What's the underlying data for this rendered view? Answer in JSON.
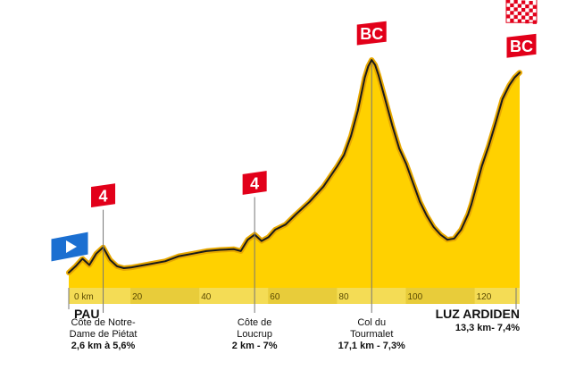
{
  "colors": {
    "fill": "#FFD100",
    "outline": "#1A1A1A",
    "halo": "#E7A800",
    "strip": "#F4DC55",
    "strip_alt": "#E8CC3A",
    "badge": "#E2001A",
    "start": "#1B6FD1",
    "leader": "#777777"
  },
  "chart_data": {
    "type": "area",
    "title": "",
    "xlabel": "",
    "ylabel": "",
    "xlim": [
      0,
      131
    ],
    "ylim": [
      300,
      2150
    ],
    "unit": "km",
    "x": [
      0,
      2,
      4,
      6,
      8,
      10,
      12,
      14,
      16,
      18,
      20,
      24,
      28,
      32,
      36,
      40,
      44,
      48,
      50,
      52,
      54,
      56,
      58,
      60,
      63,
      66,
      70,
      74,
      78,
      80,
      82,
      84,
      86,
      87,
      88,
      89,
      90,
      91,
      92,
      94,
      96,
      98,
      100,
      102,
      104,
      106,
      108,
      110,
      112,
      114,
      116,
      117,
      118,
      119,
      120,
      122,
      124,
      126,
      128,
      129.5,
      131
    ],
    "elevation": [
      420,
      470,
      530,
      480,
      570,
      620,
      520,
      470,
      455,
      460,
      470,
      490,
      510,
      550,
      570,
      590,
      600,
      605,
      590,
      680,
      720,
      670,
      700,
      760,
      800,
      880,
      980,
      1100,
      1260,
      1350,
      1500,
      1700,
      1960,
      2050,
      2100,
      2060,
      1980,
      1880,
      1780,
      1580,
      1400,
      1280,
      1130,
      980,
      870,
      780,
      720,
      680,
      690,
      760,
      880,
      960,
      1060,
      1160,
      1260,
      1420,
      1600,
      1790,
      1900,
      1960,
      2000
    ],
    "x_ticks": [
      {
        "value": 0,
        "label": "0 km"
      },
      {
        "value": 20,
        "label": "20"
      },
      {
        "value": 40,
        "label": "40"
      },
      {
        "value": 60,
        "label": "60"
      },
      {
        "value": 80,
        "label": "80"
      },
      {
        "value": 100,
        "label": "100"
      },
      {
        "value": 120,
        "label": "120"
      }
    ],
    "markers": [
      {
        "x": 0,
        "type": "start",
        "name": "PAU",
        "lines": []
      },
      {
        "x": 10,
        "type": "climb",
        "category": "4",
        "name": "Côte de Notre-\nDame de Piétat",
        "lines": [
          "2,6 km à 5,6%"
        ]
      },
      {
        "x": 54,
        "type": "climb",
        "category": "4",
        "name": "Côte de\nLoucrup",
        "lines": [
          "2 km - 7%"
        ]
      },
      {
        "x": 88,
        "type": "climb",
        "category": "BC",
        "name": "Col du\nTourmalet",
        "lines": [
          "17,1 km - 7,3%"
        ]
      },
      {
        "x": 131,
        "type": "finish",
        "category": "BC",
        "name": "LUZ ARDIDEN",
        "lines": [
          "13,3 km- 7,4%"
        ]
      }
    ]
  }
}
